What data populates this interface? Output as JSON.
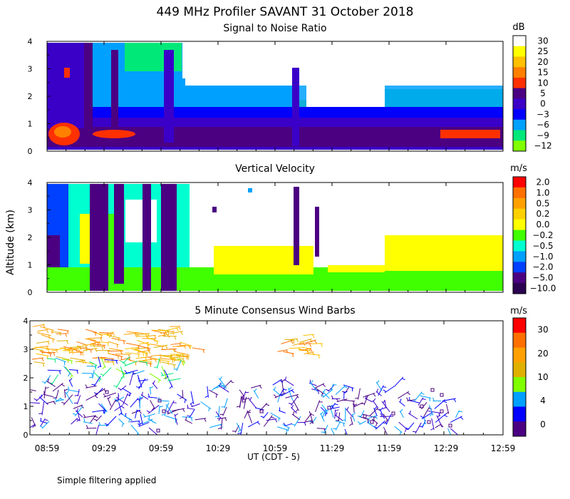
{
  "figure_title": "449 MHz Profiler SAVANT 31 October 2018",
  "y_axis_label": "Altitude (km)",
  "x_axis_label": "UT  (CDT - 5)",
  "footnote": "Simple filtering applied",
  "x_ticks": [
    "08:59",
    "09:29",
    "09:59",
    "10:29",
    "10:59",
    "11:29",
    "11:59",
    "12:29",
    "12:59"
  ],
  "y_ticks": [
    "0",
    "1",
    "2",
    "3",
    "4"
  ],
  "chart_data": [
    {
      "type": "heatmap",
      "title": "Signal to Noise Ratio",
      "xlabel": "UT  (CDT - 5)",
      "ylabel": "Altitude (km)",
      "ylim": [
        0,
        4
      ],
      "colorbar_unit": "dB",
      "colorbar_ticks": [
        "30",
        "25",
        "20",
        "15",
        "10",
        "5",
        "0",
        "−3",
        "−6",
        "−9",
        "−12"
      ],
      "colors": [
        "#ffffff",
        "#ffff00",
        "#ffc000",
        "#ff8000",
        "#ff3000",
        "#4b0082",
        "#3a00c8",
        "#0000ff",
        "#00a0ff",
        "#00e878",
        "#80ff00"
      ]
    },
    {
      "type": "heatmap",
      "title": "Vertical Velocity",
      "xlabel": "UT  (CDT - 5)",
      "ylabel": "Altitude (km)",
      "ylim": [
        0,
        4
      ],
      "colorbar_unit": "m/s",
      "colorbar_ticks": [
        "2.0",
        "1.0",
        "0.5",
        "0.2",
        "0.0",
        "−0.2",
        "−0.5",
        "−1.0",
        "−2.0",
        "−5.0",
        "−10.0"
      ],
      "colors": [
        "#ff0000",
        "#ff7000",
        "#ffa000",
        "#ffd000",
        "#ffff00",
        "#40ff00",
        "#00ffd0",
        "#00a0ff",
        "#0040ff",
        "#4b0082",
        "#2a0050"
      ]
    },
    {
      "type": "scatter",
      "title": "5 Minute Consensus Wind Barbs",
      "xlabel": "UT  (CDT - 5)",
      "ylabel": "Altitude (km)",
      "ylim": [
        0,
        4
      ],
      "colorbar_unit": "m/s",
      "colorbar_ticks": [
        "30",
        "20",
        "10",
        "4",
        "0"
      ],
      "colors": [
        "#ff0000",
        "#ff7000",
        "#ffa000",
        "#e0b000",
        "#80ff00",
        "#00a0ff",
        "#0000ff",
        "#4b0082"
      ]
    }
  ]
}
